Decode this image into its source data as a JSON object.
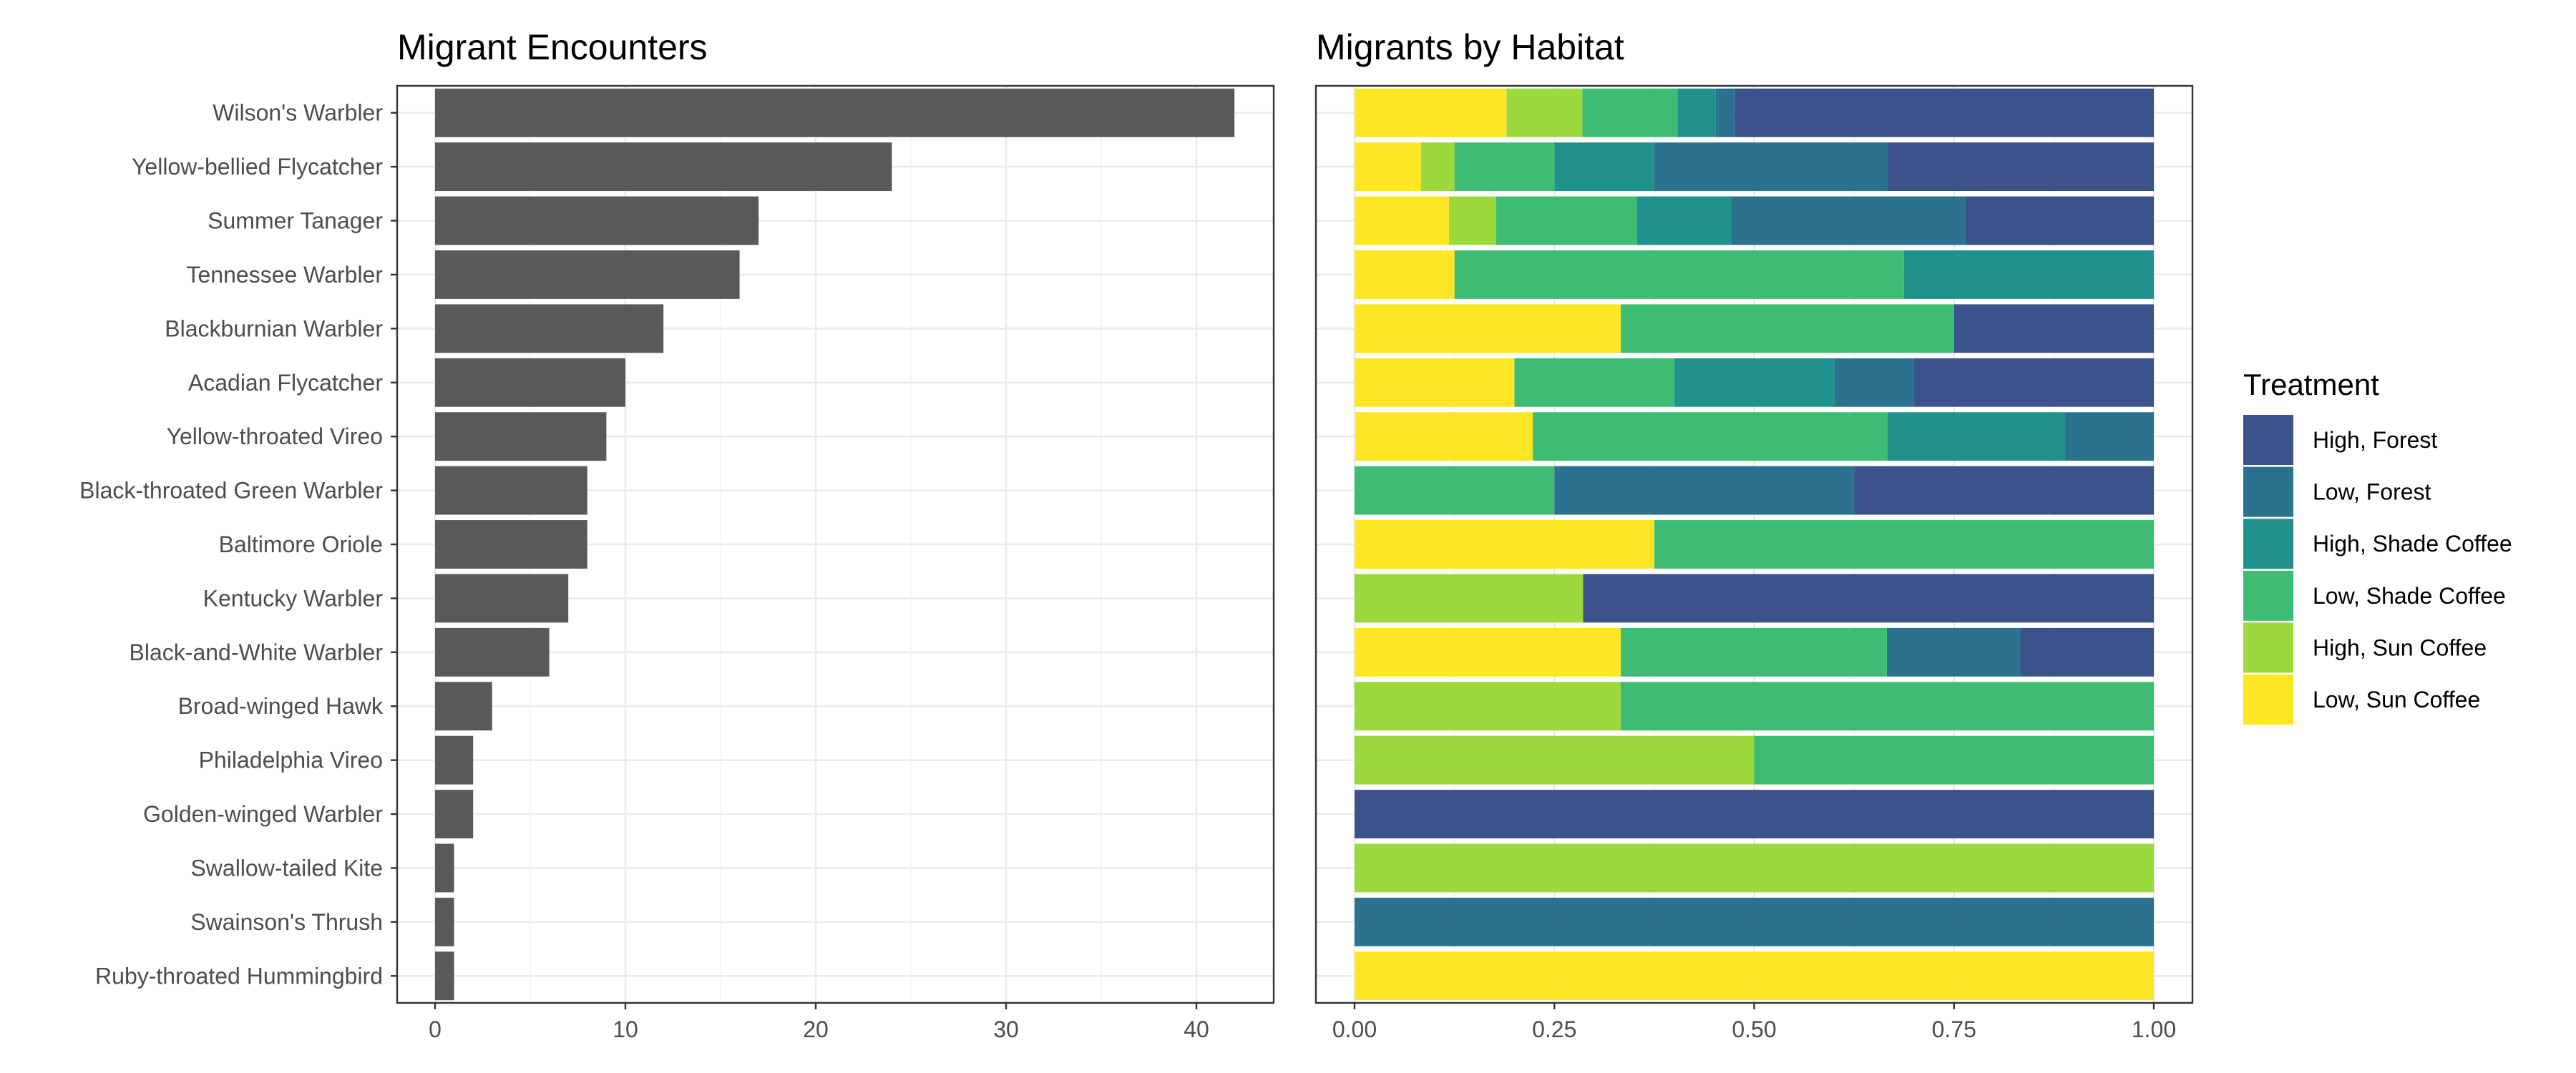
{
  "chart_data": [
    {
      "type": "bar",
      "orientation": "horizontal",
      "title": "Migrant Encounters",
      "xlabel": "",
      "ylabel": "",
      "xlim": [
        0,
        44
      ],
      "x_ticks": [
        "0",
        "10",
        "20",
        "30",
        "40"
      ],
      "grid": true,
      "categories": [
        "Wilson's Warbler",
        "Yellow-bellied Flycatcher",
        "Summer Tanager",
        "Tennessee Warbler",
        "Blackburnian Warbler",
        "Acadian Flycatcher",
        "Yellow-throated Vireo",
        "Black-throated Green Warbler",
        "Baltimore Oriole",
        "Kentucky Warbler",
        "Black-and-White Warbler",
        "Broad-winged Hawk",
        "Philadelphia Vireo",
        "Golden-winged Warbler",
        "Swallow-tailed Kite",
        "Swainson's Thrush",
        "Ruby-throated Hummingbird"
      ],
      "values": [
        42,
        24,
        17,
        16,
        12,
        10,
        9,
        8,
        8,
        7,
        6,
        3,
        2,
        2,
        1,
        1,
        1
      ],
      "bar_color": "#595959"
    },
    {
      "type": "bar",
      "orientation": "horizontal",
      "stacked": "proportion",
      "title": "Migrants by Habitat",
      "xlabel": "",
      "ylabel": "",
      "xlim": [
        0,
        1
      ],
      "x_ticks": [
        "0.00",
        "0.25",
        "0.50",
        "0.75",
        "1.00"
      ],
      "grid": true,
      "legend": {
        "title": "Treatment",
        "position": "right"
      },
      "categories": [
        "Wilson's Warbler",
        "Yellow-bellied Flycatcher",
        "Summer Tanager",
        "Tennessee Warbler",
        "Blackburnian Warbler",
        "Acadian Flycatcher",
        "Yellow-throated Vireo",
        "Black-throated Green Warbler",
        "Baltimore Oriole",
        "Kentucky Warbler",
        "Black-and-White Warbler",
        "Broad-winged Hawk",
        "Philadelphia Vireo",
        "Golden-winged Warbler",
        "Swallow-tailed Kite",
        "Swainson's Thrush",
        "Ruby-throated Hummingbird"
      ],
      "series": [
        {
          "name": "High, Forest",
          "color": "#3b528b",
          "values": [
            0.524,
            0.333,
            0.235,
            0,
            0.25,
            0.3,
            0,
            0.375,
            0,
            0.714,
            0.167,
            0,
            0,
            1,
            0,
            0,
            0
          ]
        },
        {
          "name": "Low, Forest",
          "color": "#2c728e",
          "values": [
            0.024,
            0.292,
            0.294,
            0,
            0,
            0.1,
            0.111,
            0.375,
            0,
            0,
            0.167,
            0,
            0,
            0,
            0,
            1,
            0
          ]
        },
        {
          "name": "High, Shade Coffee",
          "color": "#21918c",
          "values": [
            0.048,
            0.125,
            0.118,
            0.3125,
            0,
            0.2,
            0.222,
            0,
            0,
            0,
            0,
            0,
            0,
            0,
            0,
            0,
            0
          ]
        },
        {
          "name": "Low, Shade Coffee",
          "color": "#3fbc73",
          "values": [
            0.119,
            0.125,
            0.176,
            0.5625,
            0.417,
            0.2,
            0.444,
            0.25,
            0.625,
            0,
            0.333,
            0.667,
            0.5,
            0,
            0,
            0,
            0
          ]
        },
        {
          "name": "High, Sun Coffee",
          "color": "#9bd93c",
          "values": [
            0.095,
            0.042,
            0.059,
            0,
            0,
            0,
            0,
            0,
            0,
            0.286,
            0,
            0.333,
            0.5,
            0,
            1,
            0,
            0
          ]
        },
        {
          "name": "Low, Sun Coffee",
          "color": "#fde725",
          "values": [
            0.19,
            0.083,
            0.118,
            0.125,
            0.333,
            0.2,
            0.222,
            0,
            0.375,
            0,
            0.333,
            0,
            0,
            0,
            0,
            0,
            1
          ]
        }
      ]
    }
  ]
}
